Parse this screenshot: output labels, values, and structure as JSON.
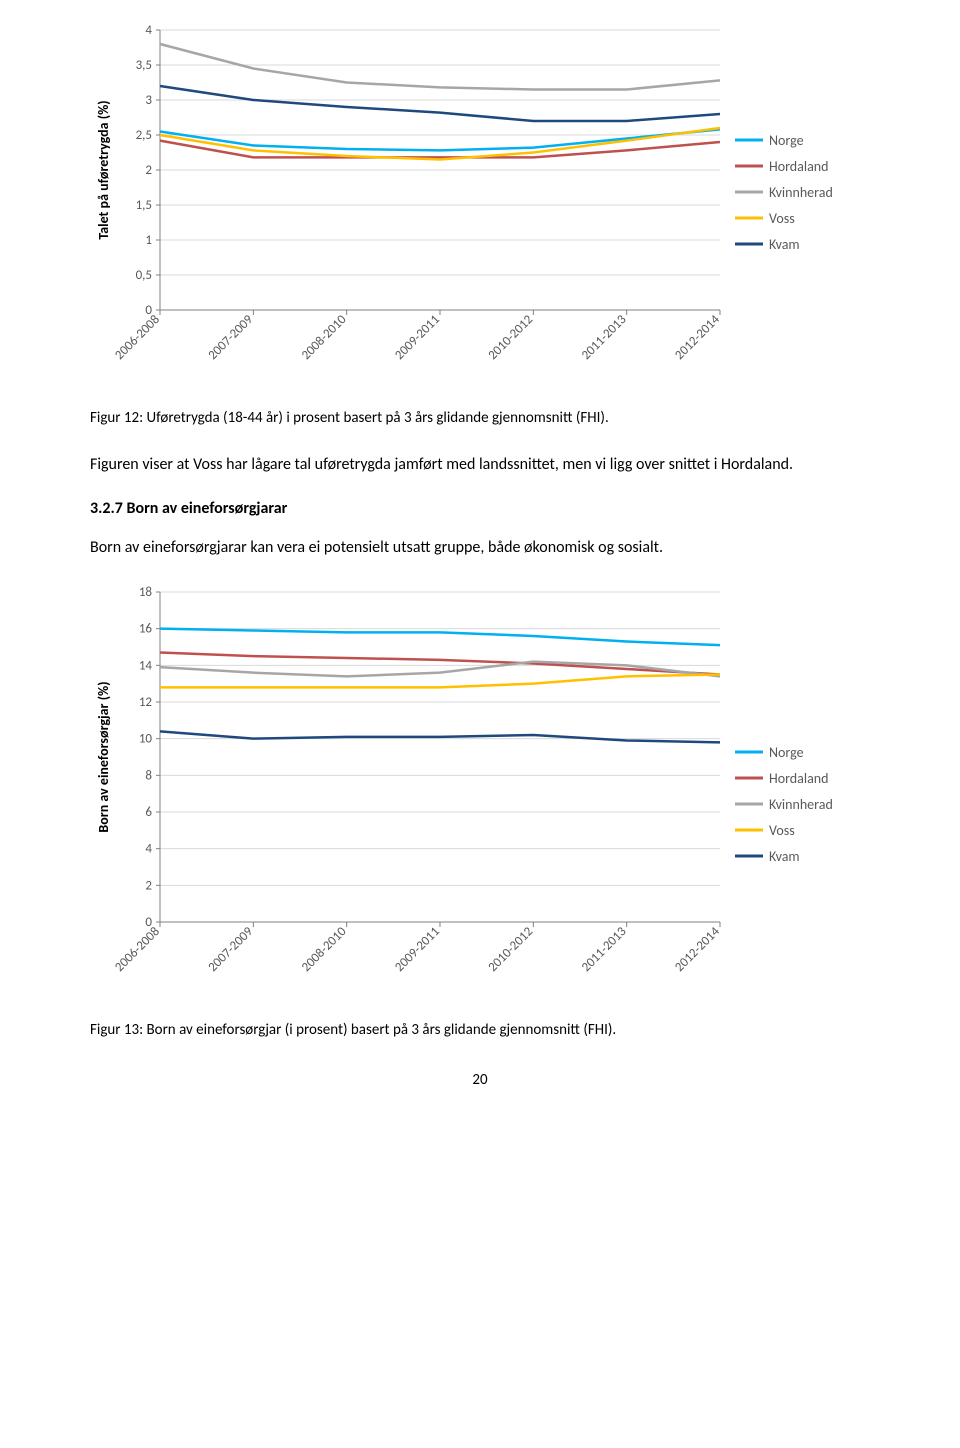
{
  "chart1": {
    "type": "line",
    "y_axis_title": "Talet på uføretrygda (%)",
    "categories": [
      "2006-2008",
      "2007-2009",
      "2008-2010",
      "2009-2011",
      "2010-2012",
      "2011-2013",
      "2012-2014"
    ],
    "ylim": [
      0,
      4
    ],
    "ytick_step": 0.5,
    "y_labels": [
      "0",
      "0,5",
      "1",
      "1,5",
      "2",
      "2,5",
      "3",
      "3,5",
      "4"
    ],
    "series": [
      {
        "name": "Norge",
        "color": "#00b0f0",
        "width": 2.5,
        "values": [
          2.55,
          2.35,
          2.3,
          2.28,
          2.32,
          2.45,
          2.58
        ]
      },
      {
        "name": "Hordaland",
        "color": "#c0504d",
        "width": 2.5,
        "values": [
          2.42,
          2.18,
          2.18,
          2.18,
          2.18,
          2.28,
          2.4
        ]
      },
      {
        "name": "Kvinnherad",
        "color": "#a6a6a6",
        "width": 2.5,
        "values": [
          3.8,
          3.45,
          3.25,
          3.18,
          3.15,
          3.15,
          3.28
        ]
      },
      {
        "name": "Voss",
        "color": "#ffc000",
        "width": 2.5,
        "values": [
          2.5,
          2.28,
          2.2,
          2.15,
          2.25,
          2.42,
          2.6
        ]
      },
      {
        "name": "Kvam",
        "color": "#1f497d",
        "width": 2.5,
        "values": [
          3.2,
          3.0,
          2.9,
          2.82,
          2.7,
          2.7,
          2.8
        ]
      }
    ],
    "legend_order": [
      "Norge",
      "Hordaland",
      "Kvinnherad",
      "Voss",
      "Kvam"
    ],
    "background_color": "#ffffff",
    "grid_color": "#d9d9d9"
  },
  "caption1": "Figur 12: Uføretrygda (18-44 år) i prosent basert på 3 års glidande gjennomsnitt (FHI).",
  "para1": "Figuren viser at Voss har lågare tal uføretrygda jamført med landssnittet, men vi ligg over snittet i Hordaland.",
  "heading": "3.2.7 Born av eineforsørgjarar",
  "para2": "Born av eineforsørgjarar kan vera ei potensielt utsatt gruppe, både økonomisk og sosialt.",
  "chart2": {
    "type": "line",
    "y_axis_title": "Born av eineforsørgjar (%)",
    "categories": [
      "2006-2008",
      "2007-2009",
      "2008-2010",
      "2009-2011",
      "2010-2012",
      "2011-2013",
      "2012-2014"
    ],
    "ylim": [
      0,
      18
    ],
    "ytick_step": 2,
    "y_labels": [
      "0",
      "2",
      "4",
      "6",
      "8",
      "10",
      "12",
      "14",
      "16",
      "18"
    ],
    "series": [
      {
        "name": "Norge",
        "color": "#00b0f0",
        "width": 2.5,
        "values": [
          16.0,
          15.9,
          15.8,
          15.8,
          15.6,
          15.3,
          15.1
        ]
      },
      {
        "name": "Hordaland",
        "color": "#c0504d",
        "width": 2.5,
        "values": [
          14.7,
          14.5,
          14.4,
          14.3,
          14.1,
          13.8,
          13.5
        ]
      },
      {
        "name": "Kvinnherad",
        "color": "#a6a6a6",
        "width": 2.5,
        "values": [
          13.9,
          13.6,
          13.4,
          13.6,
          14.2,
          14.0,
          13.4
        ]
      },
      {
        "name": "Voss",
        "color": "#ffc000",
        "width": 2.5,
        "values": [
          12.8,
          12.8,
          12.8,
          12.8,
          13.0,
          13.4,
          13.5
        ]
      },
      {
        "name": "Kvam",
        "color": "#1f497d",
        "width": 2.5,
        "values": [
          10.4,
          10.0,
          10.1,
          10.1,
          10.2,
          9.9,
          9.8
        ]
      }
    ],
    "legend_order": [
      "Norge",
      "Hordaland",
      "Kvinnherad",
      "Voss",
      "Kvam"
    ],
    "background_color": "#ffffff",
    "grid_color": "#d9d9d9"
  },
  "caption2": "Figur 13: Born av eineforsørgjar (i prosent) basert på 3 års glidande gjennomsnitt (FHI).",
  "page_number": "20"
}
